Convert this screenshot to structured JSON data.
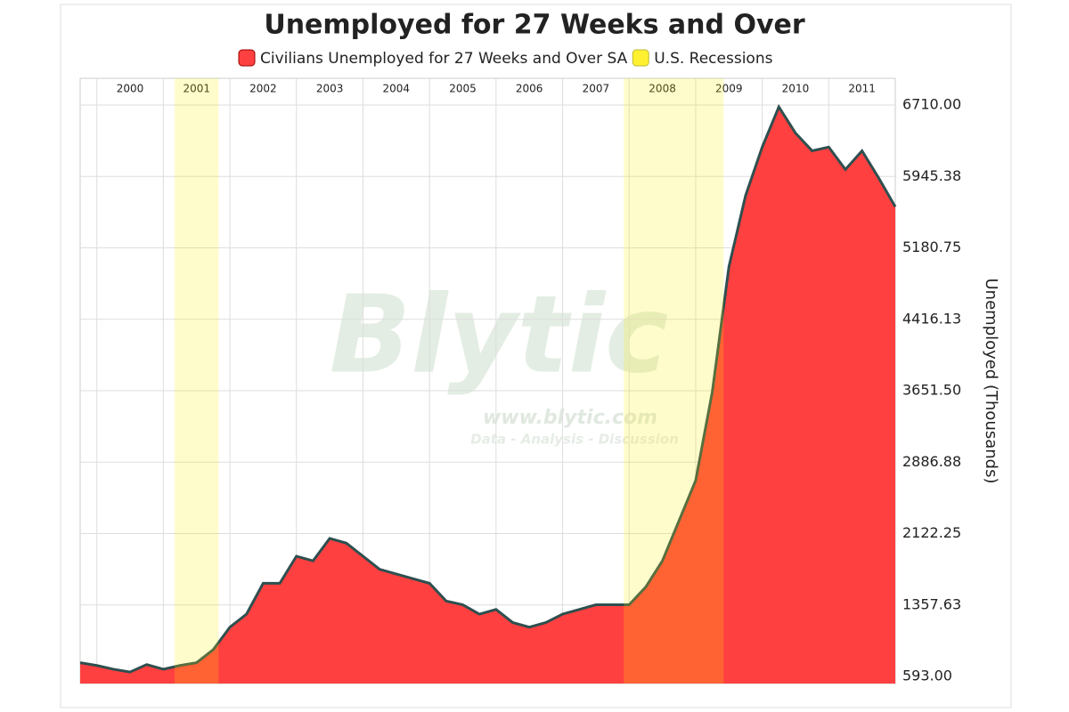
{
  "chart_data": {
    "type": "area",
    "title": "Unemployed for 27 Weeks and Over",
    "y_label": "Unemployed (Thousands)",
    "watermark": {
      "brand": "Blytic",
      "url": "www.blytic.com",
      "tagline": "Data - Analysis - Discussion"
    },
    "x": [
      1999.75,
      2000.0,
      2000.25,
      2000.5,
      2000.75,
      2001.0,
      2001.25,
      2001.5,
      2001.75,
      2002.0,
      2002.25,
      2002.5,
      2002.75,
      2003.0,
      2003.25,
      2003.5,
      2003.75,
      2004.0,
      2004.25,
      2004.5,
      2004.75,
      2005.0,
      2005.25,
      2005.5,
      2005.75,
      2006.0,
      2006.25,
      2006.5,
      2006.75,
      2007.0,
      2007.25,
      2007.5,
      2007.75,
      2008.0,
      2008.25,
      2008.5,
      2008.75,
      2009.0,
      2009.25,
      2009.5,
      2009.75,
      2010.0,
      2010.25,
      2010.5,
      2010.75,
      2011.0,
      2011.25,
      2011.5,
      2011.75,
      2012.0
    ],
    "series": [
      {
        "name": "Civilians Unemployed for 27 Weeks and Over SA",
        "color": "#ff4040",
        "values": [
          740,
          710,
          670,
          640,
          720,
          670,
          710,
          740,
          880,
          1120,
          1260,
          1590,
          1590,
          1880,
          1830,
          2070,
          2020,
          1880,
          1740,
          1690,
          1640,
          1590,
          1400,
          1360,
          1260,
          1310,
          1170,
          1120,
          1170,
          1260,
          1310,
          1360,
          1360,
          1360,
          1550,
          1830,
          2260,
          2690,
          3640,
          4980,
          5740,
          6260,
          6690,
          6410,
          6220,
          6260,
          6020,
          6220,
          5930,
          5620
        ]
      }
    ],
    "recessions": {
      "name": "U.S. Recessions",
      "color": "#ffee00",
      "periods": [
        [
          2001.17,
          2001.83
        ],
        [
          2007.92,
          2009.42
        ]
      ]
    },
    "xlim": [
      1999.75,
      2012.0
    ],
    "xticks": [
      2000,
      2001,
      2002,
      2003,
      2004,
      2005,
      2006,
      2007,
      2008,
      2009,
      2010,
      2011
    ],
    "ylim": [
      517,
      6996
    ],
    "yticks": [
      {
        "value": 593,
        "label": "593.00"
      },
      {
        "value": 1357.63,
        "label": "1357.63"
      },
      {
        "value": 2122.25,
        "label": "2122.25"
      },
      {
        "value": 2886.88,
        "label": "2886.88"
      },
      {
        "value": 3651.5,
        "label": "3651.50"
      },
      {
        "value": 4416.13,
        "label": "4416.13"
      },
      {
        "value": 5180.75,
        "label": "5180.75"
      },
      {
        "value": 5945.38,
        "label": "5945.38"
      },
      {
        "value": 6710,
        "label": "6710.00"
      }
    ],
    "grid": true
  }
}
